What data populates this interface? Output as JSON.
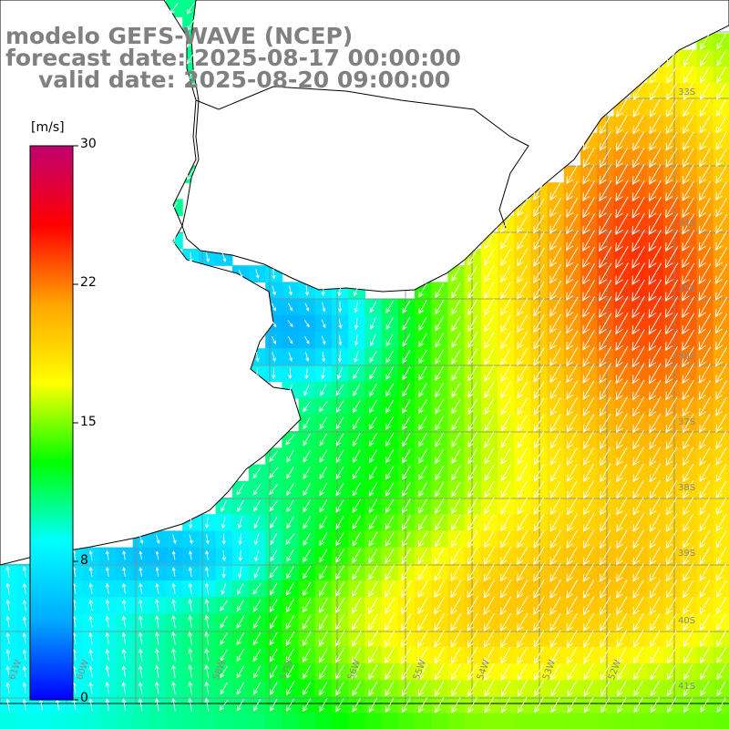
{
  "titles": {
    "model": "modelo GEFS-WAVE (NCEP)",
    "forecast": "forecast date: 2025-08-17 00:00:00",
    "valid": "valid date: 2025-08-20 09:00:00"
  },
  "colorbar": {
    "units": "[m/s]",
    "min": 0,
    "max": 30,
    "ticks": [
      "30",
      "22",
      "15",
      "8",
      "0"
    ],
    "colors": [
      "#0000ff",
      "#00aaff",
      "#00ffff",
      "#00ff00",
      "#ffff00",
      "#ffa500",
      "#ff0000",
      "#c00070"
    ]
  },
  "map": {
    "variable": "wind speed and direction",
    "lon_labels": [
      "61W",
      "60W",
      "58W",
      "57W",
      "56W",
      "55W",
      "54W",
      "53W",
      "52W"
    ],
    "lat_labels": [
      "33S",
      "34S",
      "35S",
      "36S",
      "37S",
      "38S",
      "39S",
      "40S",
      "41S"
    ],
    "grid": true,
    "wind_direction": "predominantly from the northeast"
  }
}
